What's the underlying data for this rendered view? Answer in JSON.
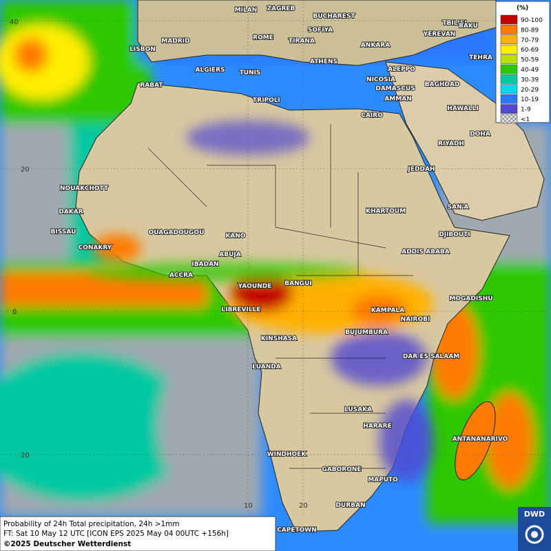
{
  "legend": {
    "title": "(%)",
    "entries": [
      {
        "label": "90-100",
        "color": "#c40000"
      },
      {
        "label": "80-89",
        "color": "#ff7a00"
      },
      {
        "label": "70-79",
        "color": "#ffb000"
      },
      {
        "label": "60-69",
        "color": "#ffee00"
      },
      {
        "label": "50-59",
        "color": "#b8e000"
      },
      {
        "label": "40-49",
        "color": "#2ec800"
      },
      {
        "label": "30-39",
        "color": "#00c8a0"
      },
      {
        "label": "20-29",
        "color": "#00d8f0"
      },
      {
        "label": "10-19",
        "color": "#2a78ff"
      },
      {
        "label": "1-9",
        "color": "#5048d0"
      },
      {
        "label": "<1",
        "color": "#c8c8c8"
      }
    ]
  },
  "cities": [
    "MILAN",
    "ZAGREB",
    "BUCHAREST",
    "TBILISI",
    "BAKU",
    "MADRID",
    "ROME",
    "SOFIYA",
    "TIRANA",
    "YEREVAN",
    "LISBON",
    "ANKARA",
    "TEHRA",
    "ALGIERS",
    "TUNIS",
    "ATHENS",
    "ALEPPO",
    "RABAT",
    "NICOSIA",
    "BAGHDAD",
    "DAMASCUS",
    "AMMAN",
    "TRIPOLI",
    "HAWALLI",
    "CAIRO",
    "DOHA",
    "RIYADH",
    "JEDDAH",
    "NOUAKCHOTT",
    "SAN'A",
    "KHARTOUM",
    "DAKAR",
    "BISSAU",
    "DJIBOUTI",
    "OUAGADOUGOU",
    "KANO",
    "CONAKRY",
    "ADDIS ABABA",
    "ABUJA",
    "IBADAN",
    "ACCRA",
    "BANGUI",
    "YAOUNDE",
    "MOGADISHU",
    "LIBREVILLE",
    "KAMPALA",
    "NAIROBI",
    "BUJUMBURA",
    "KINSHASA",
    "DAR ES SALAAM",
    "LUANDA",
    "LUSAKA",
    "HARARE",
    "ANTANANARIVO",
    "WINDHOEK",
    "GABORONE",
    "MAPUTO",
    "DURBAN",
    "CAPETOWN"
  ],
  "grid_labels": [
    "40",
    "20",
    "0",
    "20",
    "10",
    "20"
  ],
  "footer": {
    "line1": "Probability of 24h Total precipitation, 24h >1mm",
    "line2": "FT: Sat 10 May 12 UTC [ICON EPS 2025 May 04 00UTC +156h]",
    "line3": "©2025 Deutscher Wetterdienst"
  },
  "logo": "DWD"
}
